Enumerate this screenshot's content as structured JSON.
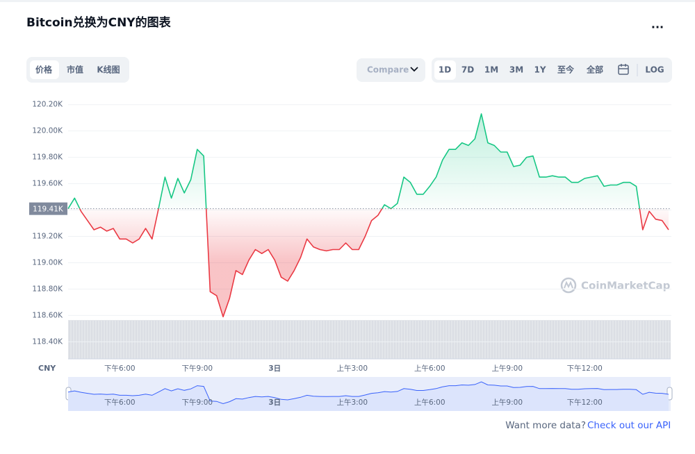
{
  "header": {
    "title": "Bitcoin兑换为CNY的图表",
    "menu": "..."
  },
  "tabs": [
    "价格",
    "市值",
    "K线图"
  ],
  "compare": "Compare",
  "ranges": [
    "1D",
    "7D",
    "1M",
    "3M",
    "1Y",
    "至今",
    "全部"
  ],
  "log": "LOG",
  "footer": {
    "question": "Want more data?",
    "link": "Check out our API"
  },
  "chart_data": {
    "type": "line",
    "watermark": "CoinMarketCap",
    "currency_label": "CNY",
    "categories": [
      null,
      null,
      null,
      null,
      null,
      null,
      null,
      null,
      "下午6:00",
      null,
      null,
      null,
      null,
      null,
      null,
      null,
      null,
      null,
      null,
      null,
      "下午9:00",
      null,
      null,
      null,
      null,
      null,
      null,
      null,
      null,
      null,
      null,
      null,
      "3日",
      null,
      null,
      null,
      null,
      null,
      null,
      null,
      null,
      null,
      null,
      null,
      "上午3:00",
      null,
      null,
      null,
      null,
      null,
      null,
      null,
      null,
      null,
      null,
      null,
      "上午6:00",
      null,
      null,
      null,
      null,
      null,
      null,
      null,
      null,
      null,
      null,
      null,
      "上午9:00",
      null,
      null,
      null,
      null,
      null,
      null,
      null,
      null,
      null,
      null,
      null,
      "下午12:00",
      null,
      null,
      null,
      null,
      null,
      null,
      null,
      null,
      null,
      null,
      null,
      null,
      null
    ],
    "values": [
      119.41,
      119.49,
      119.39,
      119.32,
      119.25,
      119.27,
      119.24,
      119.26,
      119.18,
      119.18,
      119.15,
      119.18,
      119.26,
      119.18,
      119.41,
      119.65,
      119.49,
      119.64,
      119.53,
      119.63,
      119.86,
      119.81,
      118.78,
      118.75,
      118.59,
      118.73,
      118.94,
      118.91,
      119.02,
      119.1,
      119.07,
      119.1,
      119.02,
      118.89,
      118.86,
      118.94,
      119.04,
      119.18,
      119.12,
      119.1,
      119.09,
      119.1,
      119.1,
      119.15,
      119.1,
      119.1,
      119.2,
      119.32,
      119.36,
      119.44,
      119.41,
      119.45,
      119.65,
      119.61,
      119.52,
      119.52,
      119.58,
      119.65,
      119.78,
      119.86,
      119.86,
      119.91,
      119.89,
      119.94,
      120.13,
      119.91,
      119.89,
      119.84,
      119.84,
      119.73,
      119.74,
      119.8,
      119.81,
      119.65,
      119.65,
      119.66,
      119.65,
      119.65,
      119.61,
      119.61,
      119.64,
      119.65,
      119.66,
      119.58,
      119.59,
      119.59,
      119.61,
      119.61,
      119.58,
      119.25,
      119.39,
      119.33,
      119.32,
      119.25
    ],
    "ylim": [
      118.27,
      120.23
    ],
    "yticks": [
      {
        "value": 118.4,
        "label": "118.40K"
      },
      {
        "value": 118.6,
        "label": "118.60K"
      },
      {
        "value": 118.8,
        "label": "118.80K"
      },
      {
        "value": 119.0,
        "label": "119.00K"
      },
      {
        "value": 119.2,
        "label": "119.20K"
      },
      {
        "value": 119.4,
        "label": "119.40K"
      },
      {
        "value": 119.6,
        "label": "119.60K"
      },
      {
        "value": 119.8,
        "label": "119.80K"
      },
      {
        "value": 120.0,
        "label": "120.00K"
      },
      {
        "value": 120.2,
        "label": "120.20K"
      }
    ],
    "reference": {
      "value": 119.41,
      "label": "119.41K"
    },
    "up_color": "#16c784",
    "down_color": "#ea3943",
    "navigator_color": "#3861fb",
    "grid": true
  }
}
